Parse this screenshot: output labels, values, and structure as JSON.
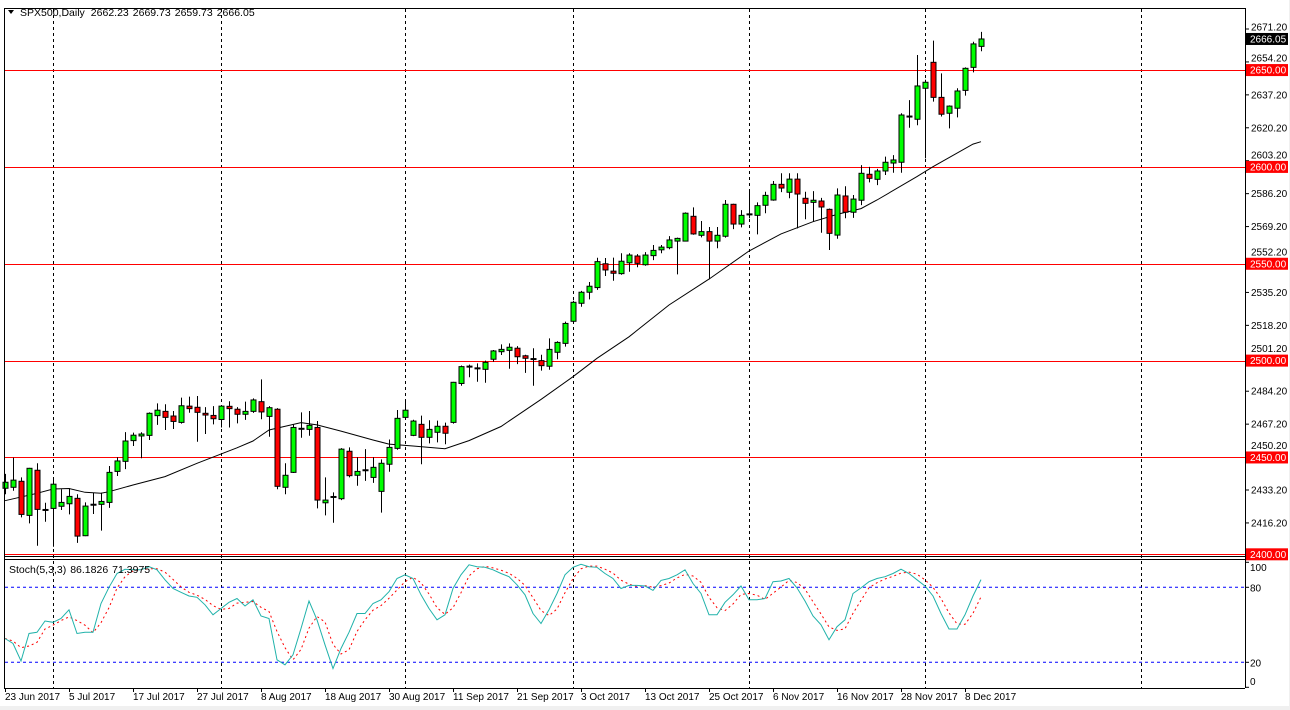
{
  "header": {
    "symbol_timeframe": "SPX500,Daily",
    "open": "2662.23",
    "high": "2669.73",
    "low": "2659.73",
    "close": "2666.05",
    "menu_icon": "triangle-down-icon"
  },
  "indicator": {
    "name": "Stoch(5,3,3)",
    "main_value": "86.1826",
    "signal_value": "71.3975",
    "main_color": "#20b2aa",
    "signal_color": "#ff0000",
    "levels": [
      80,
      20
    ],
    "level_color": "#0000ff",
    "scale_labels": [
      "100",
      "80",
      "20",
      "0"
    ]
  },
  "chart_data": [
    {
      "type": "candlestick",
      "symbol": "SPX500",
      "timeframe": "Daily",
      "up_color": "#00ff00",
      "down_color": "#ff0000",
      "ylim": [
        2399.2,
        2671.2
      ],
      "y_ticks": [
        "2671.20",
        "2654.20",
        "2637.20",
        "2620.20",
        "2603.20",
        "2586.20",
        "2569.20",
        "2552.20",
        "2535.20",
        "2518.20",
        "2501.20",
        "2484.20",
        "2467.20",
        "2450.20",
        "2433.20",
        "2416.20"
      ],
      "x_tick_labels": [
        "23 Jun 2017",
        "5 Jul 2017",
        "17 Jul 2017",
        "27 Jul 2017",
        "8 Aug 2017",
        "18 Aug 2017",
        "30 Aug 2017",
        "11 Sep 2017",
        "21 Sep 2017",
        "3 Oct 2017",
        "13 Oct 2017",
        "25 Oct 2017",
        "6 Nov 2017",
        "16 Nov 2017",
        "28 Nov 2017",
        "8 Dec 2017"
      ],
      "x_tick_every_bars": 8,
      "horizontal_levels": {
        "color": "#ff0000",
        "values": [
          "2650.00",
          "2600.00",
          "2550.00",
          "2500.00",
          "2450.00",
          "2400.00"
        ]
      },
      "current_price": "2666.05",
      "ohlc": [
        [
          2434.1,
          2441.5,
          2431.0,
          2437.2
        ],
        [
          2434.6,
          2449.9,
          2432.8,
          2438.3
        ],
        [
          2437.7,
          2439.7,
          2419.1,
          2420.6
        ],
        [
          2420.1,
          2444.6,
          2416.0,
          2444.4
        ],
        [
          2443.4,
          2447.0,
          2404.4,
          2423.2
        ],
        [
          2422.9,
          2426.6,
          2416.8,
          2422.9
        ],
        [
          2423.7,
          2439.2,
          2403.9,
          2436.2
        ],
        [
          2424.8,
          2433.6,
          2422.9,
          2426.8
        ],
        [
          2426.1,
          2434.1,
          2420.6,
          2429.9
        ],
        [
          2428.9,
          2431.0,
          2405.9,
          2409.4
        ],
        [
          2409.6,
          2426.8,
          2409.4,
          2424.9
        ],
        [
          2425.6,
          2431.8,
          2420.8,
          2425.6
        ],
        [
          2425.8,
          2431.8,
          2412.2,
          2427.3
        ],
        [
          2426.8,
          2445.6,
          2424.0,
          2442.3
        ],
        [
          2442.8,
          2450.1,
          2440.4,
          2448.2
        ],
        [
          2448.0,
          2463.1,
          2444.0,
          2458.5
        ],
        [
          2458.7,
          2462.8,
          2455.9,
          2461.5
        ],
        [
          2461.1,
          2463.0,
          2449.6,
          2462.1
        ],
        [
          2461.4,
          2473.3,
          2459.0,
          2472.8
        ],
        [
          2471.6,
          2477.9,
          2466.8,
          2474.4
        ],
        [
          2473.8,
          2477.5,
          2464.2,
          2470.7
        ],
        [
          2471.4,
          2474.0,
          2464.7,
          2468.6
        ],
        [
          2468.1,
          2480.9,
          2467.5,
          2476.7
        ],
        [
          2476.5,
          2481.4,
          2473.1,
          2475.2
        ],
        [
          2475.9,
          2481.7,
          2458.1,
          2473.3
        ],
        [
          2472.8,
          2476.0,
          2462.1,
          2471.9
        ],
        [
          2471.7,
          2476.5,
          2467.1,
          2470.0
        ],
        [
          2469.6,
          2477.0,
          2465.5,
          2476.5
        ],
        [
          2476.4,
          2479.0,
          2465.5,
          2475.2
        ],
        [
          2474.9,
          2476.0,
          2467.6,
          2472.3
        ],
        [
          2472.3,
          2478.8,
          2469.4,
          2473.8
        ],
        [
          2473.8,
          2480.5,
          2473.0,
          2479.7
        ],
        [
          2478.8,
          2490.3,
          2469.7,
          2473.5
        ],
        [
          2471.2,
          2476.5,
          2460.7,
          2475.7
        ],
        [
          2474.9,
          2475.5,
          2433.6,
          2435.1
        ],
        [
          2434.6,
          2447.0,
          2431.0,
          2440.8
        ],
        [
          2442.3,
          2467.1,
          2442.0,
          2465.5
        ],
        [
          2464.8,
          2473.3,
          2460.2,
          2464.8
        ],
        [
          2464.5,
          2474.0,
          2461.2,
          2466.6
        ],
        [
          2465.5,
          2468.8,
          2423.7,
          2428.0
        ],
        [
          2426.6,
          2439.7,
          2420.1,
          2428.0
        ],
        [
          2429.6,
          2432.0,
          2416.3,
          2429.6
        ],
        [
          2428.7,
          2454.8,
          2428.0,
          2454.3
        ],
        [
          2453.2,
          2455.2,
          2439.7,
          2440.6
        ],
        [
          2440.8,
          2450.1,
          2435.4,
          2442.8
        ],
        [
          2443.4,
          2454.3,
          2437.9,
          2443.4
        ],
        [
          2439.7,
          2450.1,
          2436.9,
          2444.9
        ],
        [
          2432.5,
          2449.0,
          2421.5,
          2447.0
        ],
        [
          2446.5,
          2459.3,
          2442.6,
          2455.2
        ],
        [
          2454.7,
          2474.5,
          2454.0,
          2470.2
        ],
        [
          2470.7,
          2479.7,
          2470.0,
          2474.4
        ],
        [
          2461.4,
          2469.5,
          2461.0,
          2468.8
        ],
        [
          2467.1,
          2471.6,
          2446.5,
          2460.4
        ],
        [
          2460.4,
          2469.2,
          2457.3,
          2464.5
        ],
        [
          2463.0,
          2469.0,
          2457.8,
          2466.1
        ],
        [
          2466.1,
          2468.0,
          2456.8,
          2462.5
        ],
        [
          2468.1,
          2489.0,
          2467.5,
          2488.8
        ],
        [
          2488.2,
          2497.5,
          2487.0,
          2496.9
        ],
        [
          2496.9,
          2497.9,
          2491.4,
          2496.9
        ],
        [
          2496.0,
          2498.6,
          2489.1,
          2496.0
        ],
        [
          2495.5,
          2500.0,
          2488.6,
          2499.1
        ],
        [
          2500.7,
          2505.5,
          2499.4,
          2505.0
        ],
        [
          2504.6,
          2508.4,
          2502.9,
          2505.8
        ],
        [
          2505.3,
          2508.9,
          2495.8,
          2506.9
        ],
        [
          2506.4,
          2507.5,
          2498.2,
          2502.0
        ],
        [
          2502.5,
          2503.0,
          2493.7,
          2501.2
        ],
        [
          2500.8,
          2506.4,
          2487.0,
          2500.8
        ],
        [
          2500.0,
          2503.0,
          2494.8,
          2497.4
        ],
        [
          2497.1,
          2511.5,
          2495.3,
          2505.8
        ],
        [
          2504.3,
          2510.0,
          2500.7,
          2509.4
        ],
        [
          2508.9,
          2520.1,
          2507.2,
          2519.2
        ],
        [
          2520.3,
          2530.9,
          2520.0,
          2530.1
        ],
        [
          2529.6,
          2536.0,
          2527.8,
          2535.3
        ],
        [
          2535.3,
          2540.6,
          2531.6,
          2538.4
        ],
        [
          2537.7,
          2553.1,
          2536.5,
          2551.1
        ],
        [
          2550.0,
          2553.0,
          2543.7,
          2546.8
        ],
        [
          2546.2,
          2553.2,
          2541.2,
          2545.1
        ],
        [
          2544.9,
          2555.4,
          2544.3,
          2551.3
        ],
        [
          2550.5,
          2555.4,
          2545.9,
          2554.5
        ],
        [
          2554.0,
          2555.0,
          2548.2,
          2550.2
        ],
        [
          2549.5,
          2556.0,
          2549.0,
          2554.5
        ],
        [
          2554.2,
          2559.7,
          2551.9,
          2556.9
        ],
        [
          2557.2,
          2559.7,
          2555.4,
          2558.6
        ],
        [
          2558.3,
          2564.3,
          2557.5,
          2562.3
        ],
        [
          2561.7,
          2563.5,
          2544.5,
          2563.1
        ],
        [
          2561.7,
          2576.5,
          2561.5,
          2576.1
        ],
        [
          2574.5,
          2579.1,
          2565.0,
          2565.4
        ],
        [
          2564.7,
          2572.1,
          2563.6,
          2566.6
        ],
        [
          2566.6,
          2569.0,
          2542.0,
          2561.7
        ],
        [
          2561.7,
          2569.0,
          2558.0,
          2564.7
        ],
        [
          2564.2,
          2582.9,
          2563.5,
          2580.7
        ],
        [
          2580.7,
          2581.0,
          2567.9,
          2570.5
        ],
        [
          2570.5,
          2577.7,
          2568.8,
          2575.0
        ],
        [
          2575.5,
          2588.4,
          2573.5,
          2575.5
        ],
        [
          2575.0,
          2581.7,
          2565.2,
          2580.0
        ],
        [
          2580.2,
          2587.2,
          2576.1,
          2585.3
        ],
        [
          2582.9,
          2592.7,
          2582.5,
          2591.0
        ],
        [
          2591.0,
          2596.7,
          2587.0,
          2589.1
        ],
        [
          2586.9,
          2596.7,
          2583.8,
          2593.7
        ],
        [
          2593.7,
          2596.7,
          2568.3,
          2586.0
        ],
        [
          2583.8,
          2587.2,
          2573.0,
          2581.2
        ],
        [
          2581.7,
          2587.5,
          2571.6,
          2582.8
        ],
        [
          2582.4,
          2584.0,
          2566.0,
          2579.3
        ],
        [
          2578.1,
          2578.5,
          2557.1,
          2565.7
        ],
        [
          2564.8,
          2588.9,
          2562.9,
          2585.5
        ],
        [
          2585.0,
          2590.0,
          2573.5,
          2576.6
        ],
        [
          2576.6,
          2585.5,
          2573.7,
          2583.4
        ],
        [
          2582.8,
          2600.9,
          2580.3,
          2596.7
        ],
        [
          2596.2,
          2600.0,
          2592.0,
          2594.1
        ],
        [
          2593.6,
          2599.0,
          2590.6,
          2597.9
        ],
        [
          2597.9,
          2605.3,
          2595.8,
          2602.4
        ],
        [
          2602.0,
          2606.1,
          2597.0,
          2603.6
        ],
        [
          2602.4,
          2627.7,
          2597.0,
          2626.8
        ],
        [
          2626.0,
          2634.5,
          2620.2,
          2626.0
        ],
        [
          2624.6,
          2657.8,
          2621.5,
          2641.8
        ],
        [
          2640.6,
          2645.0,
          2604.4,
          2643.7
        ],
        [
          2654.0,
          2665.2,
          2633.7,
          2635.9
        ],
        [
          2635.9,
          2648.3,
          2626.0,
          2627.2
        ],
        [
          2627.7,
          2631.8,
          2619.9,
          2631.4
        ],
        [
          2630.3,
          2640.6,
          2625.6,
          2639.2
        ],
        [
          2639.5,
          2651.4,
          2636.8,
          2650.9
        ],
        [
          2651.4,
          2664.6,
          2648.8,
          2663.5
        ],
        [
          2662.23,
          2669.73,
          2659.73,
          2666.05
        ]
      ],
      "moving_average": {
        "color": "#000000",
        "points": [
          [
            0,
            2427.7
          ],
          [
            4,
            2431.5
          ],
          [
            6,
            2433.7
          ],
          [
            8,
            2434.0
          ],
          [
            10,
            2432.0
          ],
          [
            12,
            2431.5
          ],
          [
            13,
            2432.3
          ],
          [
            16,
            2435.8
          ],
          [
            20,
            2440.1
          ],
          [
            24,
            2447.0
          ],
          [
            29,
            2455.0
          ],
          [
            31,
            2458.5
          ],
          [
            33,
            2464.2
          ],
          [
            37,
            2468.0
          ],
          [
            39,
            2466.8
          ],
          [
            42,
            2463.6
          ],
          [
            46,
            2459.0
          ],
          [
            48,
            2456.9
          ],
          [
            51,
            2455.9
          ],
          [
            55,
            2454.5
          ],
          [
            58,
            2458.7
          ],
          [
            62,
            2466.0
          ],
          [
            67,
            2480.0
          ],
          [
            71,
            2491.7
          ],
          [
            74,
            2501.2
          ],
          [
            78,
            2512.3
          ],
          [
            83,
            2528.7
          ],
          [
            88,
            2542.1
          ],
          [
            93,
            2556.6
          ],
          [
            97,
            2565.4
          ],
          [
            101,
            2571.7
          ],
          [
            104,
            2575.5
          ],
          [
            107,
            2578.5
          ],
          [
            109,
            2582.9
          ],
          [
            114,
            2595.0
          ],
          [
            116,
            2600.1
          ],
          [
            121,
            2611.8
          ],
          [
            122,
            2613.0
          ]
        ]
      }
    },
    {
      "type": "line",
      "title": "Stoch(5,3,3)",
      "ylim": [
        0,
        100
      ],
      "y_ticks": [
        100,
        80,
        20,
        0
      ],
      "k_values": [
        39,
        35,
        21,
        43,
        44,
        53,
        52,
        55,
        62,
        43,
        44,
        44,
        67,
        80,
        91,
        94.4,
        94,
        94,
        96.5,
        94,
        86,
        79,
        76,
        73,
        72,
        66,
        58,
        63,
        68,
        71,
        65,
        70,
        57,
        55,
        22,
        18,
        26,
        47,
        69,
        54,
        34,
        15,
        31,
        44,
        59,
        59,
        67,
        70,
        76.5,
        87,
        90,
        87,
        74,
        63,
        54,
        58,
        79,
        90,
        98,
        96.5,
        96,
        94,
        91,
        88.5,
        82,
        74,
        59,
        51,
        62,
        75,
        90,
        96,
        98.4,
        96.5,
        96,
        91,
        87,
        79,
        81.5,
        81.5,
        81,
        77.5,
        85.5,
        87,
        90,
        94,
        83,
        75,
        58,
        58,
        68,
        74,
        81,
        70,
        70,
        71,
        84.5,
        85,
        87,
        79.5,
        69,
        57,
        50,
        38,
        48.5,
        54,
        75,
        79.5,
        84.5,
        87,
        88.5,
        91,
        94.5,
        91,
        86,
        81,
        73,
        59,
        46.6,
        46.6,
        58,
        73,
        86.18
      ]
    }
  ]
}
